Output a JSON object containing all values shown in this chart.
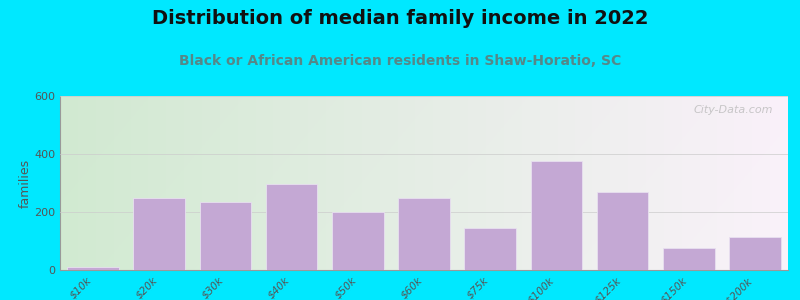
{
  "title": "Distribution of median family income in 2022",
  "subtitle": "Black or African American residents in Shaw-Horatio, SC",
  "ylabel": "families",
  "categories": [
    "$10k",
    "$20k",
    "$30k",
    "$40k",
    "$50k",
    "$60k",
    "$75k",
    "$100k",
    "$125k",
    "$150k",
    ">$200k"
  ],
  "values": [
    10,
    250,
    235,
    295,
    200,
    250,
    145,
    375,
    270,
    75,
    115
  ],
  "bar_color": "#c4a8d4",
  "bar_edgecolor": "#e8e0f0",
  "background_outer": "#00e8ff",
  "ylim": [
    0,
    600
  ],
  "yticks": [
    0,
    200,
    400,
    600
  ],
  "title_fontsize": 14,
  "subtitle_fontsize": 10,
  "ylabel_fontsize": 9,
  "watermark": "City-Data.com"
}
